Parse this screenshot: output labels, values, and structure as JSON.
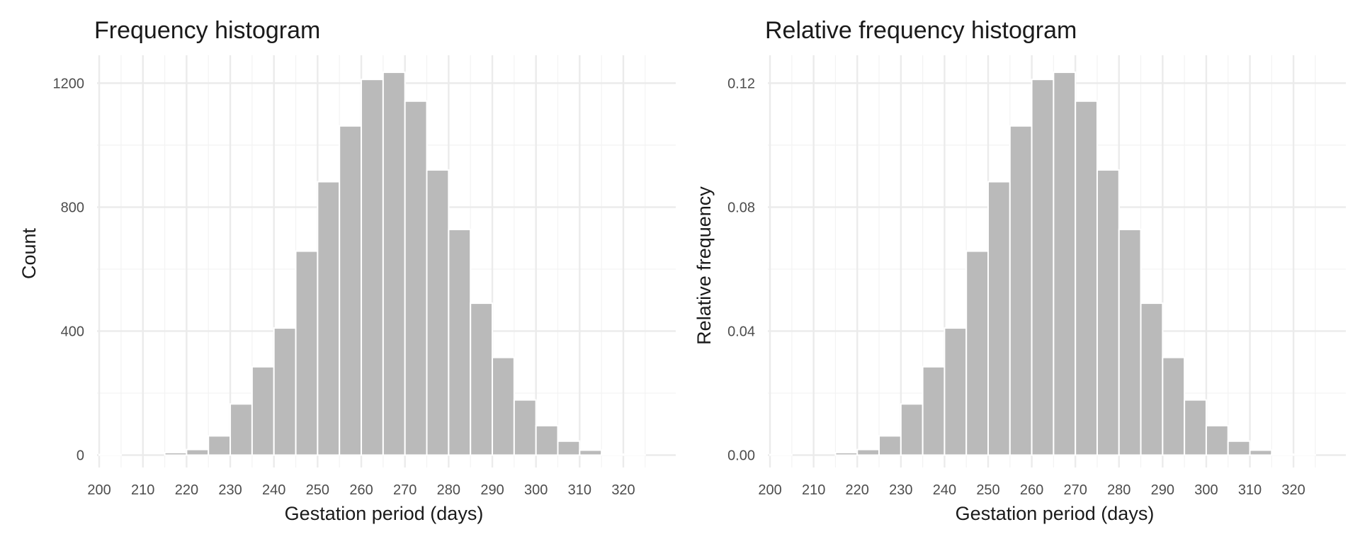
{
  "chart_data": [
    {
      "type": "bar",
      "title": "Frequency histogram",
      "xlabel": "Gestation period (days)",
      "ylabel": "Count",
      "bin_width": 5,
      "bin_starts": [
        200,
        205,
        210,
        215,
        220,
        225,
        230,
        235,
        240,
        245,
        250,
        255,
        260,
        265,
        270,
        275,
        280,
        285,
        290,
        295,
        300,
        305,
        310,
        315,
        320,
        325,
        330
      ],
      "values": [
        2,
        0,
        0,
        8,
        18,
        62,
        165,
        285,
        410,
        658,
        882,
        1062,
        1212,
        1235,
        1142,
        920,
        728,
        490,
        315,
        178,
        95,
        45,
        16,
        3,
        1,
        0,
        0
      ],
      "xlim": [
        199.5,
        332
      ],
      "ylim": [
        -40,
        1290
      ],
      "xticks": [
        200,
        210,
        220,
        230,
        240,
        250,
        260,
        270,
        280,
        290,
        300,
        310,
        320
      ],
      "xtick_labels": [
        "200",
        "210",
        "220",
        "230",
        "240",
        "250",
        "260",
        "270",
        "280",
        "290",
        "300",
        "310",
        "320"
      ],
      "yticks": [
        0,
        400,
        800,
        1200
      ],
      "ytick_labels": [
        "0",
        "400",
        "800",
        "1200"
      ],
      "grid": true
    },
    {
      "type": "bar",
      "title": "Relative frequency histogram",
      "xlabel": "Gestation period (days)",
      "ylabel": "Relative frequency",
      "bin_width": 5,
      "bin_starts": [
        200,
        205,
        210,
        215,
        220,
        225,
        230,
        235,
        240,
        245,
        250,
        255,
        260,
        265,
        270,
        275,
        280,
        285,
        290,
        295,
        300,
        305,
        310,
        315,
        320,
        325,
        330
      ],
      "values": [
        0.0002,
        0,
        0,
        0.0008,
        0.0018,
        0.0062,
        0.0165,
        0.0285,
        0.041,
        0.0658,
        0.0882,
        0.1062,
        0.1212,
        0.1235,
        0.1142,
        0.092,
        0.0728,
        0.049,
        0.0315,
        0.0178,
        0.0095,
        0.0045,
        0.0016,
        0.0003,
        0.0001,
        0,
        0
      ],
      "xlim": [
        199.5,
        332
      ],
      "ylim": [
        -0.004,
        0.129
      ],
      "xticks": [
        200,
        210,
        220,
        230,
        240,
        250,
        260,
        270,
        280,
        290,
        300,
        310,
        320
      ],
      "xtick_labels": [
        "200",
        "210",
        "220",
        "230",
        "240",
        "250",
        "260",
        "270",
        "280",
        "290",
        "300",
        "310",
        "320"
      ],
      "yticks": [
        0,
        0.04,
        0.08,
        0.12
      ],
      "ytick_labels": [
        "0.00",
        "0.04",
        "0.08",
        "0.12"
      ],
      "grid": true
    }
  ]
}
